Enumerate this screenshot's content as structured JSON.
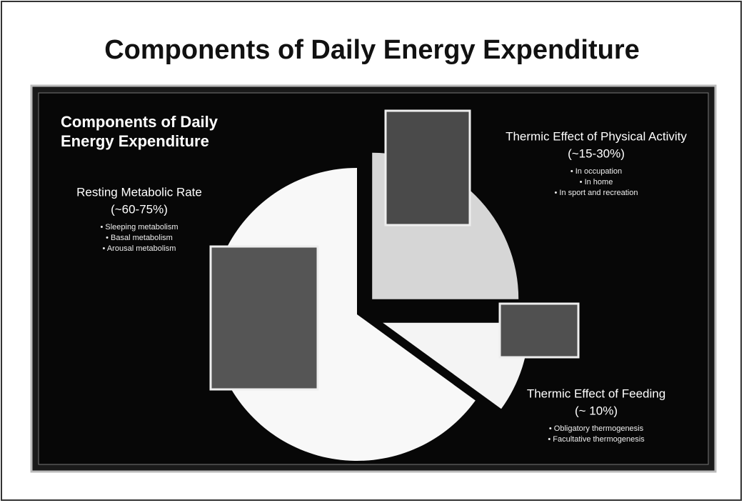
{
  "chart_data": {
    "type": "pie",
    "title": "Components of Daily Energy Expenditure",
    "panel_title": [
      "Components of Daily",
      "Energy Expenditure"
    ],
    "categories": [
      "Thermic Effect of Physical Activity",
      "Thermic Effect of Feeding",
      "Resting Metabolic Rate"
    ],
    "values": [
      25,
      10,
      65
    ],
    "colors": [
      "#d6d6d6",
      "#f4f4f4",
      "#f8f8f8"
    ],
    "ranges": [
      "(~15-30%)",
      "(~ 10%)",
      "(~60-75%)"
    ],
    "bullets": [
      [
        "• In occupation",
        "• In home",
        "• In sport and recreation"
      ],
      [
        "• Obligatory thermogenesis",
        "• Facultative thermogenesis"
      ],
      [
        "• Sleeping metabolism",
        "• Basal metabolism",
        "• Arousal metabolism"
      ]
    ]
  }
}
